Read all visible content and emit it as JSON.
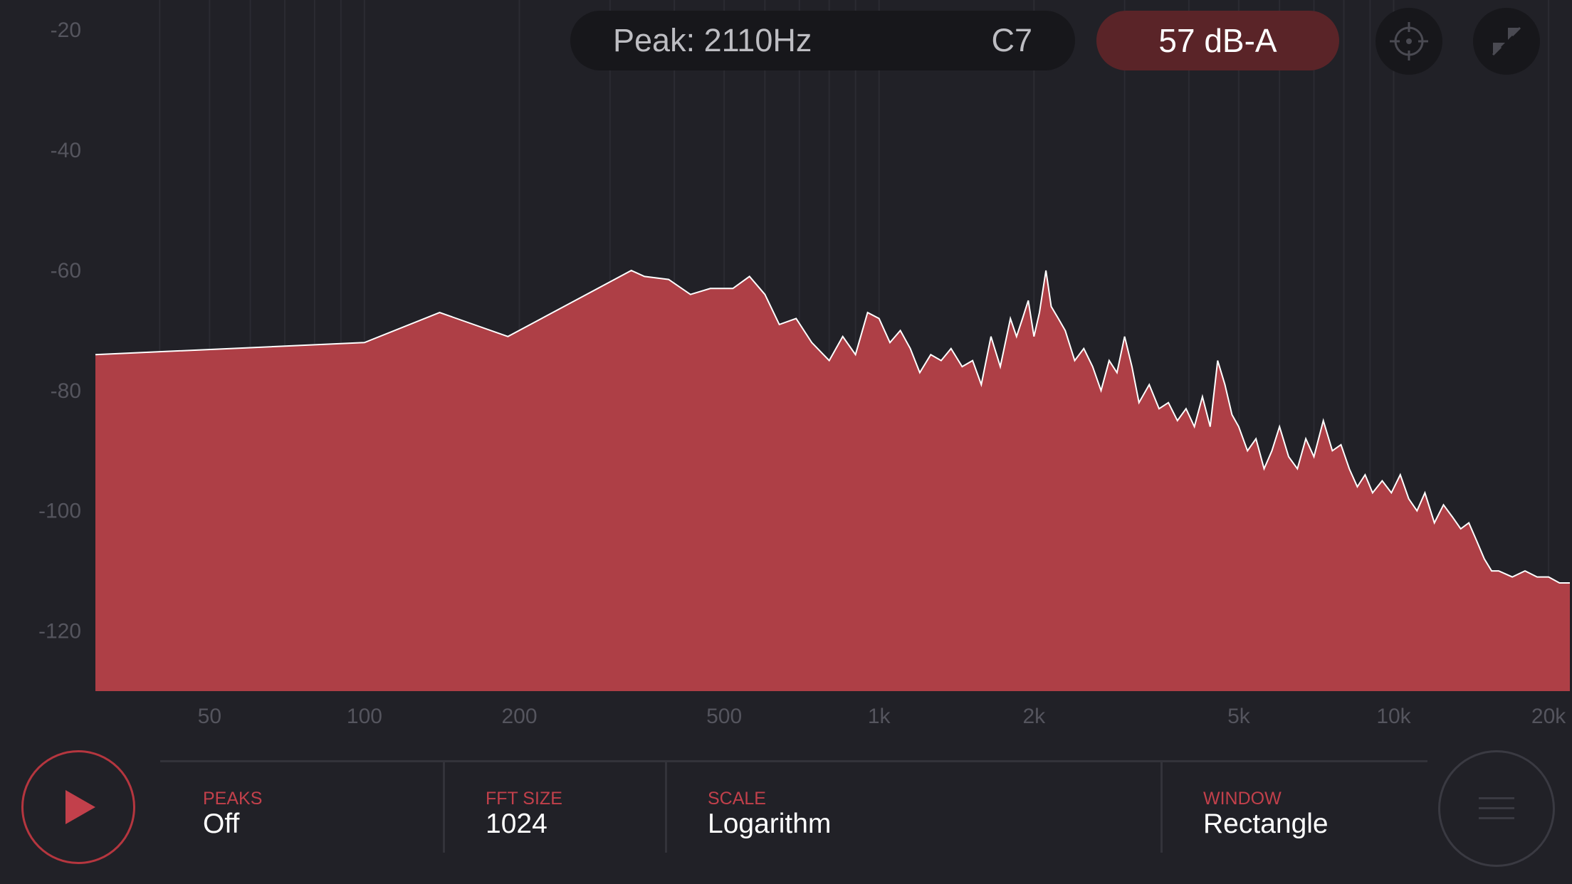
{
  "header": {
    "peak_text": "Peak: 2110Hz",
    "note_text": "C7",
    "level_text": "57 dB-A"
  },
  "settings": {
    "peaks": {
      "label": "PEAKS",
      "value": "Off"
    },
    "fft_size": {
      "label": "FFT SIZE",
      "value": "1024"
    },
    "scale": {
      "label": "SCALE",
      "value": "Logarithm"
    },
    "window": {
      "label": "WINDOW",
      "value": "Rectangle"
    }
  },
  "colors": {
    "background": "#212127",
    "spectrum_fill": "#ae3f46",
    "spectrum_line": "#ffffff",
    "accent": "#c2404b",
    "level_pill": "#5a2428"
  },
  "icons": {
    "calibrate": "crosshair-icon",
    "fullscreen": "collapse-arrows-icon",
    "play": "play-icon",
    "menu": "hamburger-icon"
  },
  "chart_data": {
    "type": "area",
    "x_scale": "log",
    "xlim": [
      30,
      22000
    ],
    "ylim": [
      -130,
      -15
    ],
    "grid": true,
    "x_ticks": [
      {
        "value": 50,
        "label": "50"
      },
      {
        "value": 100,
        "label": "100"
      },
      {
        "value": 200,
        "label": "200"
      },
      {
        "value": 500,
        "label": "500"
      },
      {
        "value": 1000,
        "label": "1k"
      },
      {
        "value": 2000,
        "label": "2k"
      },
      {
        "value": 5000,
        "label": "5k"
      },
      {
        "value": 10000,
        "label": "10k"
      },
      {
        "value": 20000,
        "label": "20k"
      }
    ],
    "y_ticks": [
      {
        "value": -20,
        "label": "-20"
      },
      {
        "value": -40,
        "label": "-40"
      },
      {
        "value": -60,
        "label": "-60"
      },
      {
        "value": -80,
        "label": "-80"
      },
      {
        "value": -100,
        "label": "-100"
      },
      {
        "value": -120,
        "label": "-120"
      }
    ],
    "x": [
      30,
      100,
      140,
      190,
      270,
      330,
      350,
      390,
      430,
      470,
      520,
      560,
      600,
      640,
      690,
      740,
      800,
      850,
      900,
      950,
      1000,
      1050,
      1100,
      1150,
      1200,
      1260,
      1320,
      1380,
      1450,
      1520,
      1580,
      1650,
      1720,
      1800,
      1850,
      1900,
      1950,
      2000,
      2050,
      2110,
      2160,
      2230,
      2300,
      2400,
      2500,
      2600,
      2700,
      2800,
      2900,
      3000,
      3100,
      3200,
      3350,
      3500,
      3650,
      3800,
      3950,
      4100,
      4250,
      4400,
      4550,
      4700,
      4850,
      5000,
      5200,
      5400,
      5600,
      5800,
      6000,
      6250,
      6500,
      6750,
      7000,
      7300,
      7600,
      7900,
      8200,
      8500,
      8800,
      9100,
      9500,
      9900,
      10300,
      10700,
      11100,
      11500,
      12000,
      12500,
      13000,
      13500,
      14000,
      14500,
      15000,
      15500,
      16000,
      17000,
      18000,
      19000,
      20000,
      21000,
      22000
    ],
    "y": [
      -74,
      -72,
      -67,
      -71,
      -64,
      -60,
      -61,
      -61.5,
      -64,
      -63,
      -63,
      -61,
      -64,
      -69,
      -68,
      -72,
      -75,
      -71,
      -74,
      -67,
      -68,
      -72,
      -70,
      -73,
      -77,
      -74,
      -75,
      -73,
      -76,
      -75,
      -79,
      -71,
      -76,
      -68,
      -71,
      -68,
      -65,
      -71,
      -67,
      -60,
      -66,
      -68,
      -70,
      -75,
      -73,
      -76,
      -80,
      -75,
      -77,
      -71,
      -76,
      -82,
      -79,
      -83,
      -82,
      -85,
      -83,
      -86,
      -81,
      -86,
      -75,
      -79,
      -84,
      -86,
      -90,
      -88,
      -93,
      -90,
      -86,
      -91,
      -93,
      -88,
      -91,
      -85,
      -90,
      -89,
      -93,
      -96,
      -94,
      -97,
      -95,
      -97,
      -94,
      -98,
      -100,
      -97,
      -102,
      -99,
      -101,
      -103,
      -102,
      -105,
      -108,
      -110,
      -110,
      -111,
      -110,
      -111,
      -111,
      -112,
      -112
    ]
  }
}
